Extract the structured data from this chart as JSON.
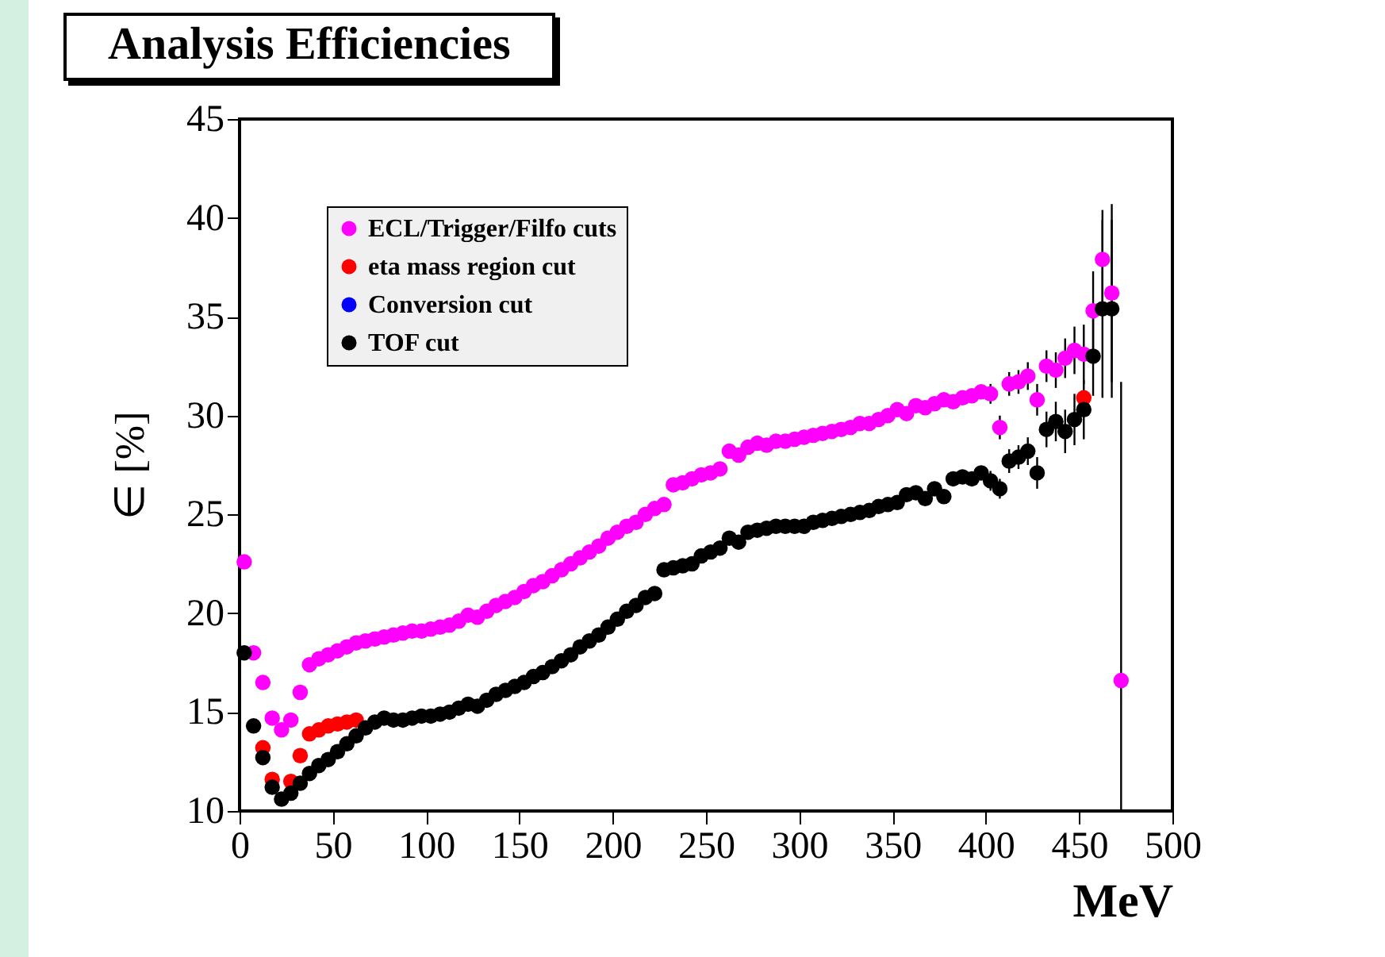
{
  "chart_data": {
    "type": "scatter",
    "title": "Analysis Efficiencies",
    "xlabel": "MeV",
    "ylabel": "∈ [%]",
    "xlim": [
      0,
      500
    ],
    "ylim": [
      10,
      45
    ],
    "xticks": [
      0,
      50,
      100,
      150,
      200,
      250,
      300,
      350,
      400,
      450,
      500
    ],
    "yticks": [
      10,
      15,
      20,
      25,
      30,
      35,
      40,
      45
    ],
    "grid": false,
    "legend": "top left",
    "marker": "circle",
    "x": [
      2.5,
      7.5,
      12.5,
      17.5,
      22.5,
      27.5,
      32.5,
      37.5,
      42.5,
      47.5,
      52.5,
      57.5,
      62.5,
      67.5,
      72.5,
      77.5,
      82.5,
      87.5,
      92.5,
      97.5,
      102.5,
      107.5,
      112.5,
      117.5,
      122.5,
      127.5,
      132.5,
      137.5,
      142.5,
      147.5,
      152.5,
      157.5,
      162.5,
      167.5,
      172.5,
      177.5,
      182.5,
      187.5,
      192.5,
      197.5,
      202.5,
      207.5,
      212.5,
      217.5,
      222.5,
      227.5,
      232.5,
      237.5,
      242.5,
      247.5,
      252.5,
      257.5,
      262.5,
      267.5,
      272.5,
      277.5,
      282.5,
      287.5,
      292.5,
      297.5,
      302.5,
      307.5,
      312.5,
      317.5,
      322.5,
      327.5,
      332.5,
      337.5,
      342.5,
      347.5,
      352.5,
      357.5,
      362.5,
      367.5,
      372.5,
      377.5,
      382.5,
      387.5,
      392.5,
      397.5,
      402.5,
      407.5,
      412.5,
      417.5,
      422.5,
      427.5,
      432.5,
      437.5,
      442.5,
      447.5,
      452.5,
      457.5,
      462.5,
      467.5,
      472.5
    ],
    "series": [
      {
        "name": "ECL/Trigger/Filfo cuts",
        "color": "#ff00ff",
        "values": [
          22.6,
          18.0,
          16.5,
          14.7,
          14.1,
          14.6,
          16.0,
          17.4,
          17.7,
          17.9,
          18.1,
          18.3,
          18.5,
          18.6,
          18.7,
          18.8,
          18.9,
          19.0,
          19.1,
          19.1,
          19.2,
          19.3,
          19.4,
          19.6,
          19.9,
          19.8,
          20.1,
          20.4,
          20.6,
          20.8,
          21.1,
          21.4,
          21.6,
          21.9,
          22.2,
          22.5,
          22.8,
          23.1,
          23.4,
          23.8,
          24.1,
          24.4,
          24.6,
          25.0,
          25.3,
          25.5,
          26.5,
          26.6,
          26.8,
          27.0,
          27.1,
          27.3,
          28.2,
          28.0,
          28.4,
          28.6,
          28.5,
          28.7,
          28.7,
          28.8,
          28.9,
          29.0,
          29.1,
          29.2,
          29.3,
          29.4,
          29.6,
          29.6,
          29.8,
          30.0,
          30.3,
          30.1,
          30.5,
          30.4,
          30.6,
          30.8,
          30.7,
          30.9,
          31.0,
          31.2,
          31.1,
          29.4,
          31.6,
          31.7,
          32.0,
          30.8,
          32.5,
          32.3,
          32.9,
          33.3,
          33.1,
          35.3,
          37.9,
          36.2,
          16.6
        ],
        "errors": [
          null,
          null,
          null,
          null,
          null,
          null,
          null,
          null,
          null,
          null,
          null,
          null,
          null,
          null,
          null,
          null,
          null,
          null,
          null,
          null,
          null,
          null,
          null,
          null,
          null,
          null,
          null,
          null,
          null,
          null,
          null,
          null,
          null,
          null,
          null,
          null,
          null,
          null,
          null,
          null,
          null,
          null,
          null,
          null,
          null,
          null,
          null,
          null,
          null,
          null,
          null,
          null,
          null,
          null,
          null,
          null,
          null,
          null,
          null,
          null,
          null,
          null,
          null,
          null,
          null,
          null,
          null,
          null,
          null,
          null,
          null,
          null,
          null,
          null,
          null,
          null,
          null,
          null,
          null,
          null,
          0.5,
          0.6,
          0.6,
          0.6,
          0.7,
          0.8,
          0.8,
          0.9,
          1.0,
          1.2,
          1.5,
          2.0,
          2.5,
          4.5,
          [
            10,
            31.7
          ]
        ]
      },
      {
        "name": "eta mass region cut",
        "color": "#ff0000",
        "values": [
          null,
          null,
          13.2,
          11.6,
          null,
          11.5,
          12.8,
          13.9,
          14.1,
          14.3,
          14.4,
          14.5,
          14.6,
          null,
          null,
          null,
          null,
          null,
          null,
          null,
          null,
          null,
          null,
          null,
          null,
          null,
          null,
          null,
          null,
          null,
          null,
          null,
          null,
          null,
          null,
          null,
          null,
          null,
          null,
          null,
          null,
          null,
          null,
          null,
          null,
          null,
          null,
          null,
          null,
          null,
          null,
          null,
          null,
          null,
          null,
          null,
          null,
          null,
          null,
          null,
          null,
          null,
          null,
          null,
          null,
          null,
          null,
          null,
          null,
          null,
          null,
          null,
          null,
          null,
          null,
          null,
          null,
          null,
          null,
          null,
          null,
          null,
          null,
          null,
          null,
          null,
          null,
          null,
          null,
          null,
          30.9,
          null,
          null,
          null,
          null
        ]
      },
      {
        "name": "Conversion cut",
        "color": "#0000ff",
        "values": [
          null,
          null,
          null,
          null,
          null,
          null,
          null,
          null,
          null,
          null,
          null,
          null,
          null,
          null,
          null,
          null,
          null,
          null,
          null,
          null,
          null,
          null,
          null,
          null,
          null,
          null,
          null,
          null,
          null,
          null,
          null,
          null,
          null,
          null,
          null,
          null,
          null,
          null,
          null,
          null,
          null,
          null,
          null,
          null,
          null,
          null,
          null,
          null,
          null,
          null,
          null,
          null,
          null,
          null,
          null,
          null,
          null,
          null,
          null,
          null,
          null,
          null,
          null,
          null,
          null,
          null,
          null,
          null,
          null,
          null,
          null,
          null,
          null,
          null,
          null,
          null,
          null,
          null,
          null,
          null,
          null,
          null,
          null,
          null,
          null,
          null,
          null,
          null,
          null,
          null,
          null,
          null,
          null,
          null,
          null
        ]
      },
      {
        "name": "TOF cut",
        "color": "#000000",
        "values": [
          18.0,
          14.3,
          12.7,
          11.2,
          10.6,
          10.9,
          11.4,
          11.9,
          12.3,
          12.6,
          13.0,
          13.4,
          13.8,
          14.2,
          14.5,
          14.7,
          14.6,
          14.6,
          14.7,
          14.8,
          14.8,
          14.9,
          15.0,
          15.2,
          15.4,
          15.3,
          15.6,
          15.9,
          16.1,
          16.3,
          16.5,
          16.8,
          17.0,
          17.3,
          17.6,
          17.9,
          18.3,
          18.6,
          18.9,
          19.3,
          19.7,
          20.1,
          20.4,
          20.8,
          21.0,
          22.2,
          22.3,
          22.4,
          22.5,
          22.9,
          23.1,
          23.3,
          23.8,
          23.6,
          24.1,
          24.2,
          24.3,
          24.4,
          24.4,
          24.4,
          24.4,
          24.6,
          24.7,
          24.8,
          24.9,
          25.0,
          25.1,
          25.2,
          25.4,
          25.5,
          25.6,
          26.0,
          26.1,
          25.8,
          26.3,
          25.9,
          26.8,
          26.9,
          26.8,
          27.1,
          26.7,
          26.3,
          27.7,
          27.9,
          28.2,
          27.1,
          29.3,
          29.7,
          29.2,
          29.8,
          30.3,
          33.0,
          35.4,
          35.4,
          null
        ],
        "errors": [
          null,
          null,
          null,
          null,
          null,
          null,
          null,
          null,
          null,
          null,
          null,
          null,
          null,
          null,
          null,
          null,
          null,
          null,
          null,
          null,
          null,
          null,
          null,
          null,
          null,
          null,
          null,
          null,
          null,
          null,
          null,
          null,
          null,
          null,
          null,
          null,
          null,
          null,
          null,
          null,
          null,
          null,
          null,
          null,
          null,
          null,
          null,
          null,
          null,
          null,
          null,
          null,
          null,
          null,
          null,
          null,
          null,
          null,
          null,
          null,
          null,
          null,
          null,
          null,
          null,
          null,
          null,
          null,
          null,
          null,
          null,
          null,
          null,
          null,
          null,
          null,
          null,
          null,
          null,
          null,
          0.5,
          0.5,
          0.6,
          0.6,
          0.7,
          0.8,
          0.9,
          1.0,
          1.1,
          1.3,
          1.5,
          2.0,
          4.5,
          4.5,
          null
        ]
      }
    ]
  }
}
